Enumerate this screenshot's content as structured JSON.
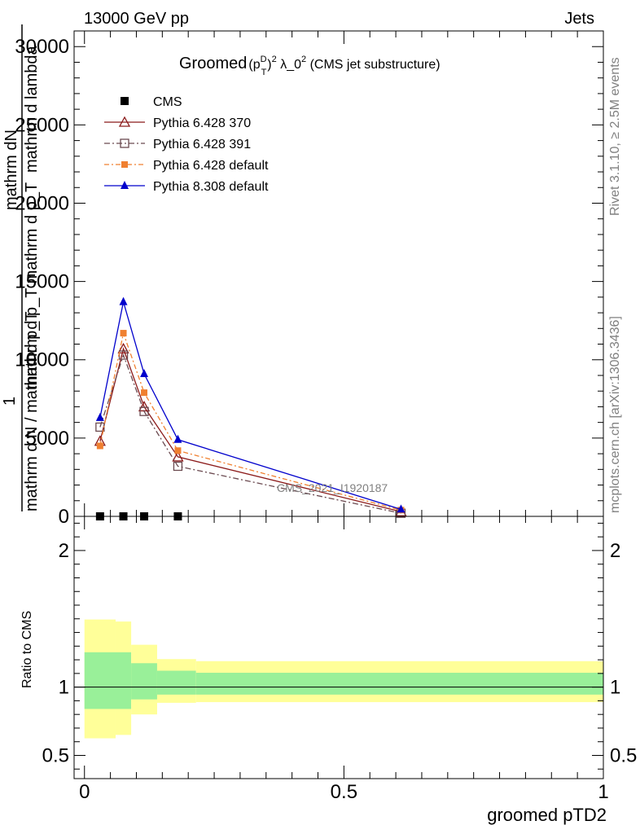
{
  "header": {
    "left": "13000 GeV pp",
    "right": "Jets"
  },
  "side_labels": {
    "right_top": "Rivet 3.1.10, ≥ 2.5M events",
    "right_bottom": "mcplots.cern.ch [arXiv:1306.3436]"
  },
  "watermark": "CMS_2021_I1920187",
  "colors": {
    "cms": "#000000",
    "p6_370": "#8b1a1a",
    "p6_391": "#6b4a50",
    "p6_default": "#f08030",
    "p8_default": "#0000cc",
    "band_inner": "#99f099",
    "band_outer": "#ffff99"
  },
  "chart_data": [
    {
      "id": "main",
      "type": "line",
      "title": "Groomed (p_T^D)^2 λ_0^2 (CMS jet substructure)",
      "title_parts": {
        "main": "Groomed",
        "p": "(p",
        "sup_d": "D",
        "sub_t": "T",
        "close": ")",
        "sup_2": "2",
        "lambda": " λ_0",
        "sup_2b": "2",
        "rest": " (CMS jet substructure)"
      },
      "ylabel_lines": [
        "mathrm d lambda",
        "mathrm dN",
        "mathrm d p_T mathrm d p_T",
        "1",
        "mathrm d N / mathrm d p_T"
      ],
      "ylim": [
        0,
        31000
      ],
      "yticks": [
        0,
        5000,
        10000,
        15000,
        20000,
        25000,
        30000
      ],
      "ytick_labels": [
        "0",
        "5000",
        "10000",
        "15000",
        "20000",
        "25000",
        "30000"
      ],
      "xlim": [
        -0.02,
        1.0
      ],
      "legend_position": "top-left",
      "series": [
        {
          "name": "CMS",
          "style": "cms",
          "x": [
            0.03,
            0.075,
            0.115,
            0.18
          ],
          "y": [
            0,
            0,
            0,
            0
          ]
        },
        {
          "name": "Pythia 6.428 370",
          "style": "p6_370",
          "x": [
            0.03,
            0.075,
            0.115,
            0.18,
            0.61
          ],
          "y": [
            4800,
            10700,
            7000,
            3800,
            300
          ]
        },
        {
          "name": "Pythia 6.428 391",
          "style": "p6_391",
          "x": [
            0.03,
            0.075,
            0.115,
            0.18,
            0.61
          ],
          "y": [
            5700,
            10300,
            6700,
            3200,
            200
          ]
        },
        {
          "name": "Pythia 6.428 default",
          "style": "p6_default",
          "x": [
            0.03,
            0.075,
            0.115,
            0.18,
            0.61
          ],
          "y": [
            4500,
            11700,
            7900,
            4200,
            400
          ]
        },
        {
          "name": "Pythia 8.308 default",
          "style": "p8_default",
          "x": [
            0.03,
            0.075,
            0.115,
            0.18,
            0.61
          ],
          "y": [
            6300,
            13700,
            9100,
            4900,
            450
          ]
        }
      ]
    },
    {
      "id": "ratio",
      "type": "area",
      "ylabel": "Ratio to CMS",
      "xlabel": "groomed pTD2",
      "ylim": [
        0.33,
        2.25
      ],
      "yticks": [
        0.5,
        1,
        2
      ],
      "ytick_labels": [
        "0.5",
        "1",
        "2"
      ],
      "xlim": [
        -0.02,
        1.0
      ],
      "xticks": [
        0,
        0.5,
        1
      ],
      "xtick_labels": [
        "0",
        "0.5",
        "1"
      ],
      "reference_line": 1,
      "bands": {
        "edges": [
          0.0,
          0.09,
          0.14,
          0.215,
          1.0
        ],
        "inner_low": [
          0.84,
          0.91,
          0.945,
          0.945
        ],
        "inner_high": [
          1.255,
          1.175,
          1.12,
          1.105
        ],
        "outer_low": [
          0.63,
          0.8,
          0.885,
          0.89
        ],
        "outer_high": [
          1.49,
          1.31,
          1.205,
          1.19
        ],
        "split": 0.06,
        "outer_low_first": [
          0.625,
          0.65
        ],
        "outer_high_first": [
          1.495,
          1.48
        ]
      }
    }
  ]
}
